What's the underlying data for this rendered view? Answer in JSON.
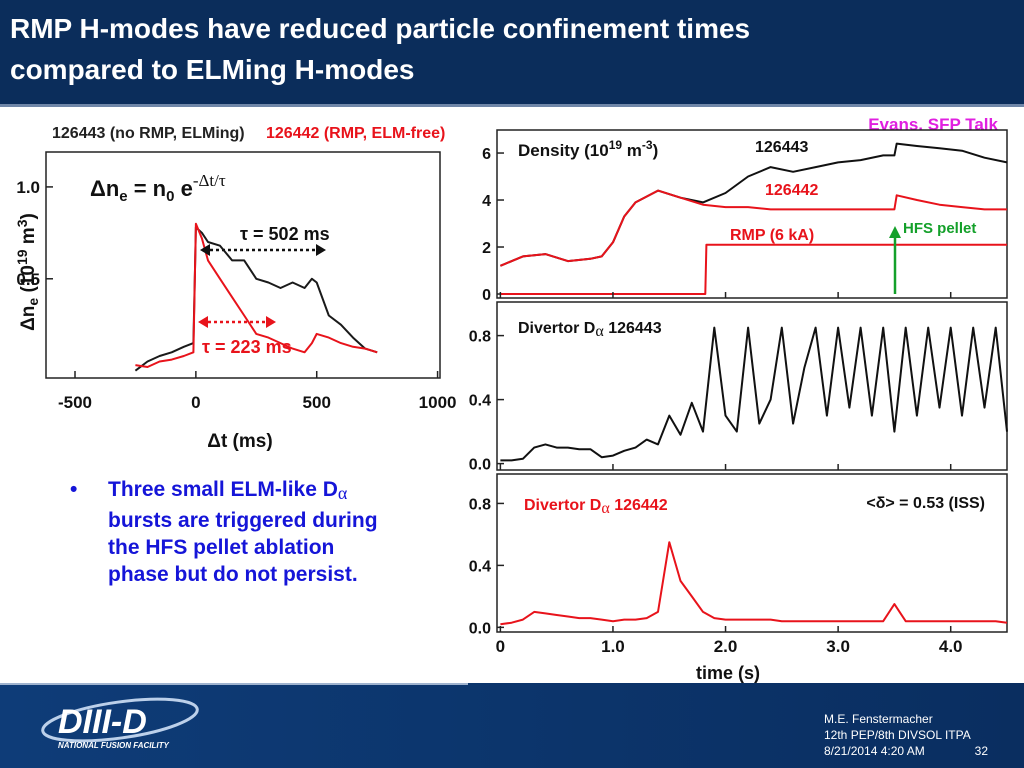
{
  "header": {
    "title_lines": [
      "RMP H-modes have reduced particle confinement times",
      "compared to ELMing H-modes"
    ]
  },
  "left_chart": {
    "type": "line",
    "legend": [
      "126443 (no RMP, ELMing)",
      "126442 (RMP, ELM-free)"
    ],
    "formula": [
      "Δn",
      "e",
      " = n",
      "0",
      " e",
      "-Δt/τ"
    ],
    "tau_black": "τ = 502 ms",
    "tau_red": "τ = 223 ms",
    "x_label": "Δt (ms)",
    "y_label": [
      "Δn",
      "e",
      " (10",
      "19",
      " m",
      "3",
      ")"
    ],
    "xlim": [
      -620,
      1010
    ],
    "xticks": [
      -500,
      0,
      500,
      1000
    ],
    "ylim": [
      -0.04,
      1.19
    ],
    "yticks": [
      0.5,
      {
        "value": 1,
        "label": "1.0"
      }
    ],
    "x": [
      -250,
      -200,
      -150,
      -100,
      -50,
      -10,
      0,
      25,
      50,
      100,
      150,
      200,
      250,
      300,
      350,
      400,
      450,
      480,
      500,
      550,
      600,
      650,
      700,
      750
    ],
    "series": [
      {
        "name": "126443 (no RMP, ELMing)",
        "color": "#1a1a1a",
        "values": [
          0.0,
          0.05,
          0.08,
          0.1,
          0.13,
          0.15,
          0.78,
          0.75,
          0.7,
          0.68,
          0.6,
          0.6,
          0.5,
          0.48,
          0.45,
          0.48,
          0.45,
          0.5,
          0.48,
          0.3,
          0.25,
          0.18,
          0.12,
          0.1
        ]
      },
      {
        "name": "126442 (RMP, ELM-free)",
        "color": "#e8131b",
        "values": [
          0.03,
          0.02,
          0.05,
          0.06,
          0.08,
          0.1,
          0.8,
          0.72,
          0.6,
          0.5,
          0.4,
          0.3,
          0.2,
          0.18,
          0.15,
          0.12,
          0.1,
          0.15,
          0.2,
          0.18,
          0.15,
          0.13,
          0.12,
          0.1
        ]
      }
    ]
  },
  "right_chart": {
    "type": "line",
    "corner_note": "Evans, SFP Talk",
    "x_label": "time (s)",
    "xlim": [
      -0.03,
      4.5
    ],
    "xticks": [
      0,
      {
        "value": 1,
        "label": "1.0"
      },
      {
        "value": 2,
        "label": "2.0"
      },
      {
        "value": 3,
        "label": "3.0"
      },
      {
        "value": 4,
        "label": "4.0"
      }
    ],
    "panels": [
      {
        "title": [
          "Density  (10",
          "19",
          " m",
          "-3",
          ")"
        ],
        "ylim": [
          -0.17,
          6.98
        ],
        "yticks": [
          0,
          2,
          4,
          6
        ],
        "annotation": "HFS pellet",
        "series": [
          {
            "name": "126443",
            "color": "#111111",
            "x": [
              0,
              0.2,
              0.4,
              0.6,
              0.8,
              0.9,
              1.0,
              1.1,
              1.2,
              1.4,
              1.6,
              1.8,
              2.0,
              2.2,
              2.4,
              2.6,
              2.8,
              3.0,
              3.2,
              3.4,
              3.5,
              3.52,
              3.7,
              3.9,
              4.1,
              4.3,
              4.5
            ],
            "values": [
              1.2,
              1.6,
              1.7,
              1.4,
              1.5,
              1.6,
              2.2,
              3.3,
              3.9,
              4.4,
              4.1,
              3.9,
              4.3,
              5.0,
              5.4,
              5.2,
              5.4,
              5.6,
              5.7,
              5.9,
              5.9,
              6.4,
              6.3,
              6.2,
              6.1,
              5.8,
              5.6
            ]
          },
          {
            "name": "126442",
            "color": "#e8131b",
            "x": [
              0,
              0.2,
              0.4,
              0.6,
              0.8,
              0.9,
              1.0,
              1.1,
              1.2,
              1.4,
              1.6,
              1.8,
              2.0,
              2.2,
              2.4,
              2.6,
              2.8,
              3.0,
              3.2,
              3.4,
              3.5,
              3.52,
              3.7,
              3.9,
              4.1,
              4.3,
              4.5
            ],
            "values": [
              1.2,
              1.6,
              1.7,
              1.4,
              1.5,
              1.6,
              2.2,
              3.3,
              3.9,
              4.4,
              4.1,
              3.8,
              3.7,
              3.7,
              3.6,
              3.6,
              3.6,
              3.6,
              3.6,
              3.6,
              3.6,
              4.2,
              4.0,
              3.8,
              3.7,
              3.6,
              3.6
            ]
          },
          {
            "name": "RMP (6 kA)",
            "color": "#e8131b",
            "x": [
              0,
              1.82,
              1.83,
              4.5
            ],
            "values": [
              0,
              0,
              2.1,
              2.1
            ]
          }
        ]
      },
      {
        "title": [
          "Divertor D",
          "α",
          "  126443"
        ],
        "ylim": [
          -0.04,
          1.01
        ],
        "yticks": [
          {
            "value": 0,
            "label": "0.0"
          },
          {
            "value": 0.4,
            "label": "0.4"
          },
          {
            "value": 0.8,
            "label": "0.8"
          }
        ],
        "x": [
          0,
          0.1,
          0.2,
          0.3,
          0.4,
          0.5,
          0.6,
          0.7,
          0.8,
          0.9,
          1.0,
          1.1,
          1.2,
          1.3,
          1.4,
          1.5,
          1.6,
          1.7,
          1.8,
          1.9,
          2.0,
          2.1,
          2.2,
          2.3,
          2.4,
          2.5,
          2.6,
          2.7,
          2.8,
          2.9,
          3.0,
          3.1,
          3.2,
          3.3,
          3.4,
          3.5,
          3.6,
          3.7,
          3.8,
          3.9,
          4.0,
          4.1,
          4.2,
          4.3,
          4.4,
          4.5
        ],
        "series": [
          {
            "color": "#111111",
            "values": [
              0.02,
              0.02,
              0.03,
              0.1,
              0.12,
              0.1,
              0.1,
              0.09,
              0.09,
              0.04,
              0.05,
              0.08,
              0.1,
              0.15,
              0.12,
              0.3,
              0.18,
              0.38,
              0.2,
              0.85,
              0.3,
              0.2,
              0.85,
              0.25,
              0.4,
              0.85,
              0.25,
              0.6,
              0.85,
              0.3,
              0.85,
              0.35,
              0.85,
              0.3,
              0.85,
              0.2,
              0.85,
              0.3,
              0.85,
              0.35,
              0.85,
              0.3,
              0.85,
              0.35,
              0.85,
              0.2
            ]
          }
        ]
      },
      {
        "title": [
          "Divertor D",
          "α",
          "  126442"
        ],
        "note": "<δ> = 0.53 (ISS)",
        "ylim": [
          -0.03,
          0.99
        ],
        "yticks": [
          {
            "value": 0,
            "label": "0.0"
          },
          {
            "value": 0.4,
            "label": "0.4"
          },
          {
            "value": 0.8,
            "label": "0.8"
          }
        ],
        "x": [
          0,
          0.1,
          0.2,
          0.3,
          0.4,
          0.5,
          0.6,
          0.7,
          0.8,
          0.9,
          1.0,
          1.1,
          1.2,
          1.3,
          1.4,
          1.5,
          1.6,
          1.7,
          1.8,
          1.9,
          2.0,
          2.1,
          2.2,
          2.3,
          2.4,
          2.5,
          2.6,
          2.7,
          2.8,
          2.9,
          3.0,
          3.1,
          3.2,
          3.3,
          3.4,
          3.5,
          3.6,
          3.7,
          3.8,
          3.9,
          4.0,
          4.1,
          4.2,
          4.3,
          4.4,
          4.5
        ],
        "series": [
          {
            "color": "#e8131b",
            "values": [
              0.02,
              0.03,
              0.05,
              0.1,
              0.09,
              0.08,
              0.07,
              0.06,
              0.06,
              0.05,
              0.04,
              0.05,
              0.05,
              0.06,
              0.1,
              0.55,
              0.3,
              0.2,
              0.1,
              0.06,
              0.05,
              0.05,
              0.05,
              0.05,
              0.05,
              0.04,
              0.04,
              0.04,
              0.04,
              0.04,
              0.04,
              0.04,
              0.04,
              0.04,
              0.04,
              0.15,
              0.04,
              0.04,
              0.04,
              0.04,
              0.04,
              0.04,
              0.04,
              0.04,
              0.04,
              0.03
            ]
          }
        ]
      }
    ]
  },
  "bullet": [
    "Three small ELM-like D",
    "α",
    " bursts are triggered during the HFS pellet ablation phase but do not persist."
  ],
  "footer": {
    "logo": "DIII-D",
    "logo_sub": "NATIONAL FUSION FACILITY",
    "author": "M.E. Fenstermacher",
    "meeting": "12th PEP/8th DIVSOL ITPA",
    "date": "8/21/2014 4:20 AM",
    "page": "32"
  }
}
